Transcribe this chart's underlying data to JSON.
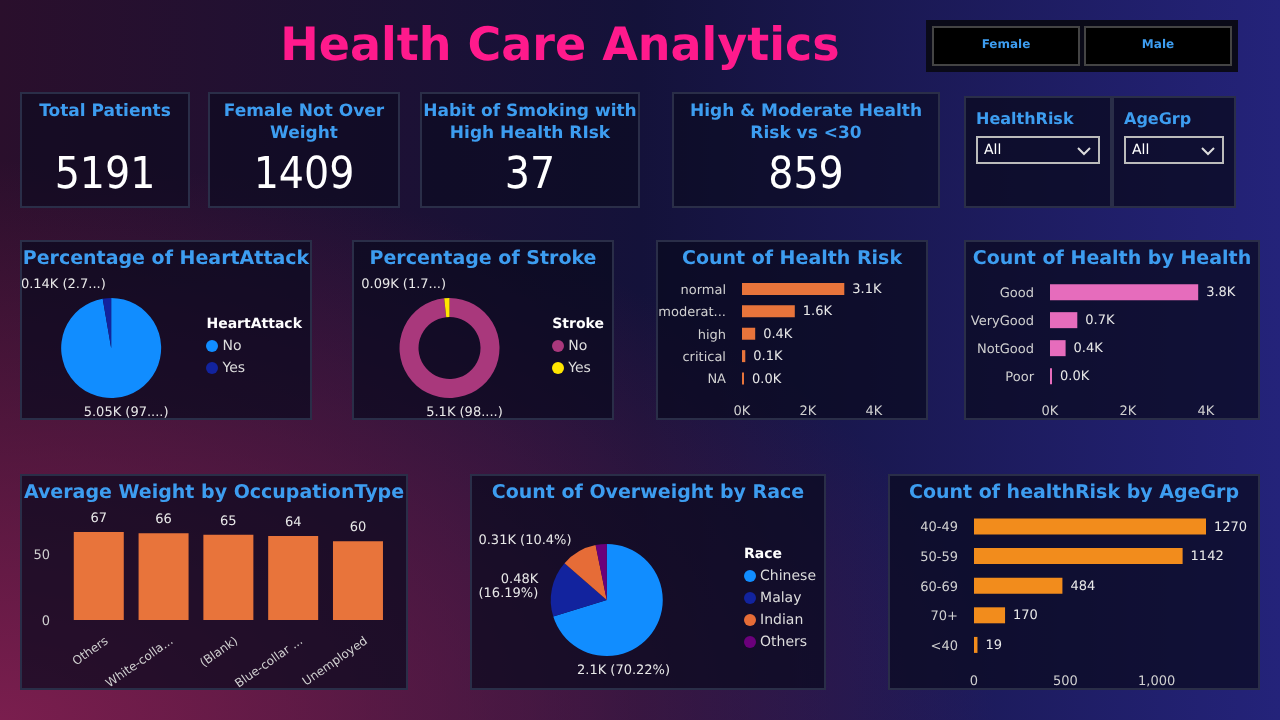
{
  "chart_data": [
    {
      "type": "other",
      "title": "Health Care Analytics"
    },
    {
      "type": "other",
      "annotations": [
        "Female",
        "Male"
      ]
    },
    {
      "type": "other",
      "title": "Total Patients",
      "annotations": [
        "5191"
      ]
    },
    {
      "type": "other",
      "title": "Female Not Over Weight",
      "annotations": [
        "1409"
      ]
    },
    {
      "type": "other",
      "title": "Habit of Smoking with High Health RIsk",
      "annotations": [
        "37"
      ]
    },
    {
      "type": "other",
      "title": "High & Moderate Health Risk vs <30",
      "annotations": [
        "859"
      ]
    },
    {
      "type": "other",
      "title": "HealthRisk",
      "annotations": [
        "All"
      ]
    },
    {
      "type": "other",
      "title": "AgeGrp",
      "annotations": [
        "All"
      ]
    },
    {
      "type": "pie",
      "title": "Percentage of HeartAttack",
      "categories": [
        "No",
        "Yes"
      ],
      "values": [
        97.3,
        2.7
      ],
      "colors": [
        "#118dff",
        "#12239e"
      ],
      "value_labels": [
        "5.05K (97....)",
        "0.14K (2.7...)"
      ],
      "legend": "right",
      "legend_title": "HeartAttack"
    },
    {
      "type": "donut",
      "title": "Percentage of Stroke",
      "categories": [
        "No",
        "Yes"
      ],
      "values": [
        98.3,
        1.7
      ],
      "colors": [
        "#a9387c",
        "#ffe600"
      ],
      "value_labels": [
        "5.1K (98....)",
        "0.09K (1.7...)"
      ],
      "legend": "right",
      "legend_title": "Stroke"
    },
    {
      "type": "bar",
      "orientation": "horizontal",
      "title": "Count of Health Risk",
      "categories": [
        "normal",
        "moderat...",
        "high",
        "critical",
        "NA"
      ],
      "values": [
        3100,
        1600,
        400,
        100,
        0
      ],
      "color": "#e8743b",
      "value_labels": [
        "3.1K",
        "1.6K",
        "0.4K",
        "0.1K",
        "0.0K"
      ],
      "xlim": [
        0,
        4000
      ],
      "xticks": [
        {
          "value": 0,
          "label": "0K"
        },
        {
          "value": 2000,
          "label": "2K"
        },
        {
          "value": 4000,
          "label": "4K"
        }
      ]
    },
    {
      "type": "bar",
      "orientation": "horizontal",
      "title": "Count of Health by Health",
      "categories": [
        "Good",
        "VeryGood",
        "NotGood",
        "Poor"
      ],
      "values": [
        3800,
        700,
        400,
        0
      ],
      "color": "#e66cbc",
      "value_labels": [
        "3.8K",
        "0.7K",
        "0.4K",
        "0.0K"
      ],
      "xlim": [
        0,
        4000
      ],
      "xticks": [
        {
          "value": 0,
          "label": "0K"
        },
        {
          "value": 2000,
          "label": "2K"
        },
        {
          "value": 4000,
          "label": "4K"
        }
      ]
    },
    {
      "type": "bar",
      "title": "Average Weight by OccupationType",
      "categories": [
        "Others",
        "White-colla...",
        "(Blank)",
        "Blue-collar ...",
        "Unemployed"
      ],
      "values": [
        67,
        66,
        65,
        64,
        60
      ],
      "color": "#e8743b",
      "data_labels": true,
      "ylim": [
        0,
        67
      ],
      "yticks": [
        0,
        50
      ]
    },
    {
      "type": "pie",
      "title": "Count of Overweight by Race",
      "categories": [
        "Chinese",
        "Malay",
        "Indian",
        "Others"
      ],
      "values": [
        70.22,
        16.19,
        10.4,
        3.19
      ],
      "colors": [
        "#118dff",
        "#12239e",
        "#e66c37",
        "#6b007b"
      ],
      "value_labels": [
        "2.1K (70.22%)",
        "0.48K (16.19%)",
        "0.31K (10.4%)",
        null
      ],
      "legend": "right",
      "legend_title": "Race"
    },
    {
      "type": "bar",
      "orientation": "horizontal",
      "title": "Count of healthRisk by AgeGrp",
      "categories": [
        "40-49",
        "50-59",
        "60-69",
        "70+",
        "<40"
      ],
      "values": [
        1270,
        1142,
        484,
        170,
        19
      ],
      "color": "#f28c1c",
      "data_labels": true,
      "xlim": [
        0,
        1270
      ],
      "xticks": [
        0,
        500,
        {
          "value": 1000,
          "label": "1,000"
        }
      ]
    }
  ]
}
